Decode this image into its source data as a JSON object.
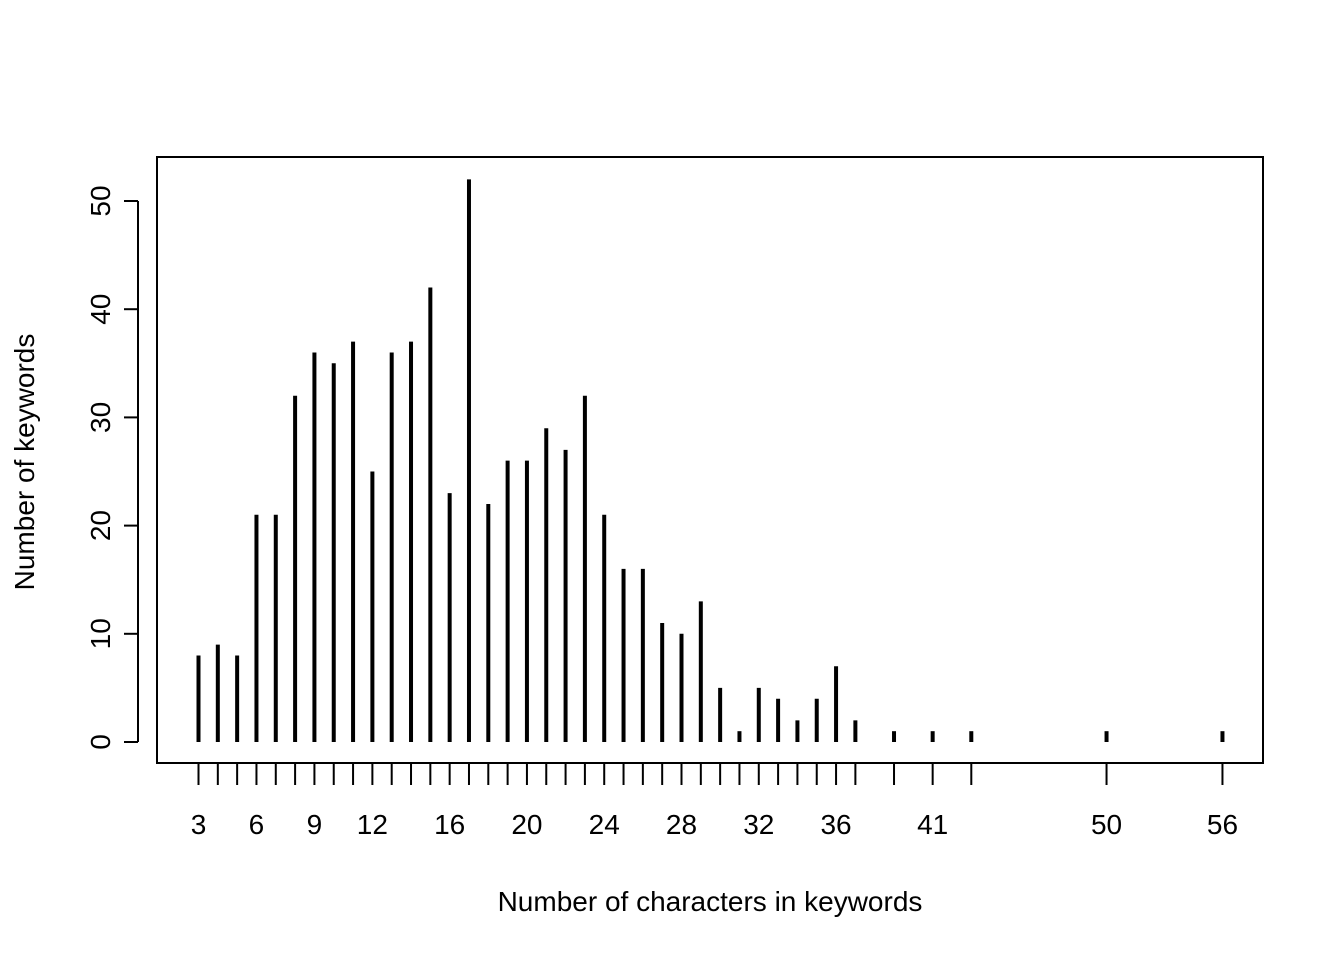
{
  "chart_data": {
    "type": "bar",
    "style": "spike",
    "title": "",
    "xlabel": "Number of characters in keywords",
    "ylabel": "Number of keywords",
    "ylim": [
      0,
      55
    ],
    "yticks": [
      0,
      10,
      20,
      30,
      40,
      50
    ],
    "xtick_labels": [
      3,
      6,
      9,
      12,
      16,
      20,
      24,
      28,
      32,
      36,
      41,
      50,
      56
    ],
    "grid": false,
    "legend": "none",
    "x": [
      3,
      4,
      5,
      6,
      7,
      8,
      9,
      10,
      11,
      12,
      13,
      14,
      15,
      16,
      17,
      18,
      19,
      20,
      21,
      22,
      23,
      24,
      25,
      26,
      27,
      28,
      29,
      30,
      31,
      32,
      33,
      34,
      35,
      36,
      37,
      39,
      41,
      43,
      50,
      56
    ],
    "values": [
      8,
      9,
      8,
      21,
      21,
      32,
      36,
      35,
      37,
      25,
      36,
      37,
      42,
      23,
      52,
      22,
      26,
      26,
      29,
      27,
      32,
      21,
      16,
      16,
      11,
      10,
      13,
      5,
      1,
      5,
      4,
      2,
      4,
      7,
      2,
      1,
      1,
      1,
      1,
      1
    ],
    "color": "#000000"
  }
}
